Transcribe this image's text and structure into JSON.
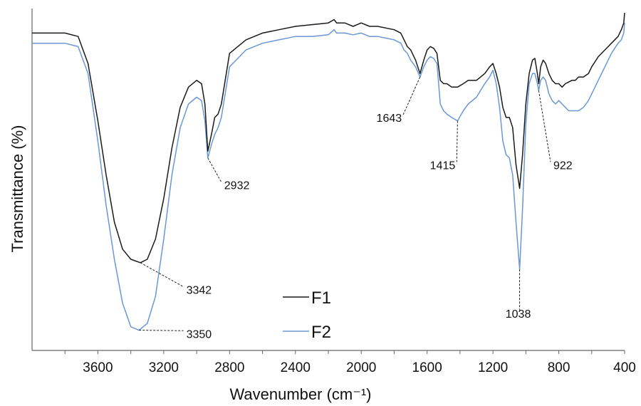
{
  "chart_data": {
    "type": "line",
    "title": "",
    "xlabel": "Wavenumber (cm⁻¹)",
    "ylabel": "Transmittance (%)",
    "xlim": [
      4000,
      400
    ],
    "x_reversed": true,
    "y_ticks_shown": false,
    "grid": false,
    "legend_position": "bottom-center",
    "x_ticks": [
      3600,
      3200,
      2800,
      2400,
      2000,
      1600,
      1200,
      800,
      400
    ],
    "ylim": [
      0,
      100
    ],
    "series": [
      {
        "name": "F1",
        "color": "#1a1a1a",
        "points": [
          [
            4000,
            94
          ],
          [
            3800,
            94
          ],
          [
            3720,
            93
          ],
          [
            3660,
            85
          ],
          [
            3600,
            68
          ],
          [
            3550,
            52
          ],
          [
            3500,
            38
          ],
          [
            3450,
            30
          ],
          [
            3400,
            27
          ],
          [
            3342,
            26
          ],
          [
            3300,
            27
          ],
          [
            3250,
            33
          ],
          [
            3200,
            45
          ],
          [
            3150,
            60
          ],
          [
            3100,
            72
          ],
          [
            3050,
            78
          ],
          [
            3000,
            80
          ],
          [
            2970,
            79
          ],
          [
            2950,
            73
          ],
          [
            2932,
            59
          ],
          [
            2910,
            64
          ],
          [
            2890,
            69
          ],
          [
            2870,
            70
          ],
          [
            2850,
            73
          ],
          [
            2800,
            88
          ],
          [
            2700,
            92
          ],
          [
            2600,
            94
          ],
          [
            2500,
            95
          ],
          [
            2400,
            96
          ],
          [
            2300,
            96.5
          ],
          [
            2200,
            97
          ],
          [
            2165,
            98
          ],
          [
            2150,
            97
          ],
          [
            2100,
            97
          ],
          [
            2050,
            96
          ],
          [
            2000,
            97
          ],
          [
            1950,
            96
          ],
          [
            1900,
            96
          ],
          [
            1800,
            95
          ],
          [
            1760,
            94
          ],
          [
            1740,
            92
          ],
          [
            1720,
            90
          ],
          [
            1700,
            89
          ],
          [
            1670,
            86
          ],
          [
            1643,
            82
          ],
          [
            1620,
            86
          ],
          [
            1600,
            89
          ],
          [
            1580,
            90
          ],
          [
            1560,
            89.5
          ],
          [
            1540,
            88
          ],
          [
            1520,
            80
          ],
          [
            1500,
            79
          ],
          [
            1480,
            79
          ],
          [
            1450,
            78
          ],
          [
            1415,
            78
          ],
          [
            1380,
            79
          ],
          [
            1350,
            80
          ],
          [
            1300,
            80
          ],
          [
            1250,
            82
          ],
          [
            1220,
            84
          ],
          [
            1200,
            85
          ],
          [
            1180,
            82
          ],
          [
            1160,
            78
          ],
          [
            1140,
            72
          ],
          [
            1120,
            69
          ],
          [
            1100,
            69
          ],
          [
            1080,
            66
          ],
          [
            1060,
            55
          ],
          [
            1038,
            48
          ],
          [
            1020,
            58
          ],
          [
            1000,
            73
          ],
          [
            980,
            82
          ],
          [
            960,
            86
          ],
          [
            945,
            86.5
          ],
          [
            930,
            82
          ],
          [
            922,
            79
          ],
          [
            910,
            84
          ],
          [
            895,
            86
          ],
          [
            880,
            85
          ],
          [
            860,
            82
          ],
          [
            840,
            80
          ],
          [
            820,
            79
          ],
          [
            800,
            79
          ],
          [
            780,
            78
          ],
          [
            760,
            79
          ],
          [
            740,
            79.5
          ],
          [
            720,
            80
          ],
          [
            700,
            80
          ],
          [
            680,
            81
          ],
          [
            650,
            81
          ],
          [
            620,
            82
          ],
          [
            600,
            84
          ],
          [
            560,
            87
          ],
          [
            520,
            89
          ],
          [
            480,
            91
          ],
          [
            440,
            93
          ],
          [
            420,
            95
          ],
          [
            405,
            97
          ],
          [
            400,
            100
          ]
        ]
      },
      {
        "name": "F2",
        "color": "#6a97d6",
        "points": [
          [
            4000,
            91
          ],
          [
            3800,
            91
          ],
          [
            3720,
            90
          ],
          [
            3660,
            82
          ],
          [
            3600,
            62
          ],
          [
            3550,
            43
          ],
          [
            3500,
            27
          ],
          [
            3450,
            14
          ],
          [
            3400,
            7
          ],
          [
            3350,
            6
          ],
          [
            3300,
            8
          ],
          [
            3250,
            16
          ],
          [
            3200,
            33
          ],
          [
            3150,
            52
          ],
          [
            3100,
            66
          ],
          [
            3050,
            73
          ],
          [
            3000,
            75
          ],
          [
            2970,
            74
          ],
          [
            2950,
            68
          ],
          [
            2932,
            57
          ],
          [
            2910,
            61
          ],
          [
            2890,
            64
          ],
          [
            2870,
            66
          ],
          [
            2850,
            69
          ],
          [
            2800,
            84
          ],
          [
            2700,
            89
          ],
          [
            2600,
            91
          ],
          [
            2500,
            92
          ],
          [
            2400,
            93
          ],
          [
            2300,
            93
          ],
          [
            2200,
            93.5
          ],
          [
            2165,
            95
          ],
          [
            2150,
            94
          ],
          [
            2100,
            94
          ],
          [
            2050,
            93.5
          ],
          [
            2000,
            94
          ],
          [
            1950,
            93
          ],
          [
            1900,
            93
          ],
          [
            1800,
            92
          ],
          [
            1760,
            91
          ],
          [
            1740,
            89
          ],
          [
            1720,
            88
          ],
          [
            1700,
            86
          ],
          [
            1670,
            84
          ],
          [
            1643,
            81
          ],
          [
            1620,
            84
          ],
          [
            1600,
            86
          ],
          [
            1580,
            87
          ],
          [
            1560,
            86.5
          ],
          [
            1540,
            85
          ],
          [
            1520,
            73
          ],
          [
            1500,
            71
          ],
          [
            1480,
            70
          ],
          [
            1450,
            69
          ],
          [
            1415,
            68
          ],
          [
            1380,
            71
          ],
          [
            1350,
            73
          ],
          [
            1300,
            75
          ],
          [
            1250,
            79
          ],
          [
            1220,
            81
          ],
          [
            1200,
            83
          ],
          [
            1180,
            79
          ],
          [
            1160,
            72
          ],
          [
            1140,
            62
          ],
          [
            1120,
            58
          ],
          [
            1100,
            57
          ],
          [
            1080,
            52
          ],
          [
            1060,
            38
          ],
          [
            1038,
            24
          ],
          [
            1020,
            42
          ],
          [
            1000,
            67
          ],
          [
            980,
            79
          ],
          [
            960,
            82
          ],
          [
            945,
            82
          ],
          [
            930,
            79
          ],
          [
            922,
            77
          ],
          [
            910,
            80
          ],
          [
            895,
            81
          ],
          [
            880,
            80
          ],
          [
            860,
            76
          ],
          [
            840,
            74
          ],
          [
            820,
            73
          ],
          [
            800,
            74
          ],
          [
            780,
            73
          ],
          [
            760,
            72
          ],
          [
            740,
            71
          ],
          [
            720,
            71
          ],
          [
            700,
            71
          ],
          [
            680,
            71
          ],
          [
            650,
            72
          ],
          [
            620,
            74
          ],
          [
            600,
            76
          ],
          [
            560,
            80
          ],
          [
            520,
            84
          ],
          [
            480,
            88
          ],
          [
            440,
            91
          ],
          [
            420,
            92
          ],
          [
            405,
            94
          ],
          [
            400,
            97
          ]
        ]
      }
    ],
    "annotations": [
      {
        "label": "3342",
        "series": "F1",
        "x": 3342,
        "y": 26,
        "label_x": 3080,
        "label_y": 18
      },
      {
        "label": "3350",
        "series": "F2",
        "x": 3350,
        "y": 6,
        "label_x": 3080,
        "label_y": 5
      },
      {
        "label": "2932",
        "series": "F1",
        "x": 2932,
        "y": 57,
        "label_x": 2850,
        "label_y": 49
      },
      {
        "label": "1643",
        "series": "F1",
        "x": 1643,
        "y": 81,
        "label_x": 1745,
        "label_y": 69
      },
      {
        "label": "1415",
        "series": "F2",
        "x": 1415,
        "y": 68,
        "label_x": 1420,
        "label_y": 55
      },
      {
        "label": "1038",
        "series": "F2",
        "x": 1038,
        "y": 24,
        "label_x": 1038,
        "label_y": 11
      },
      {
        "label": "922",
        "series": "F1",
        "x": 922,
        "y": 77,
        "label_x": 850,
        "label_y": 55
      }
    ]
  }
}
